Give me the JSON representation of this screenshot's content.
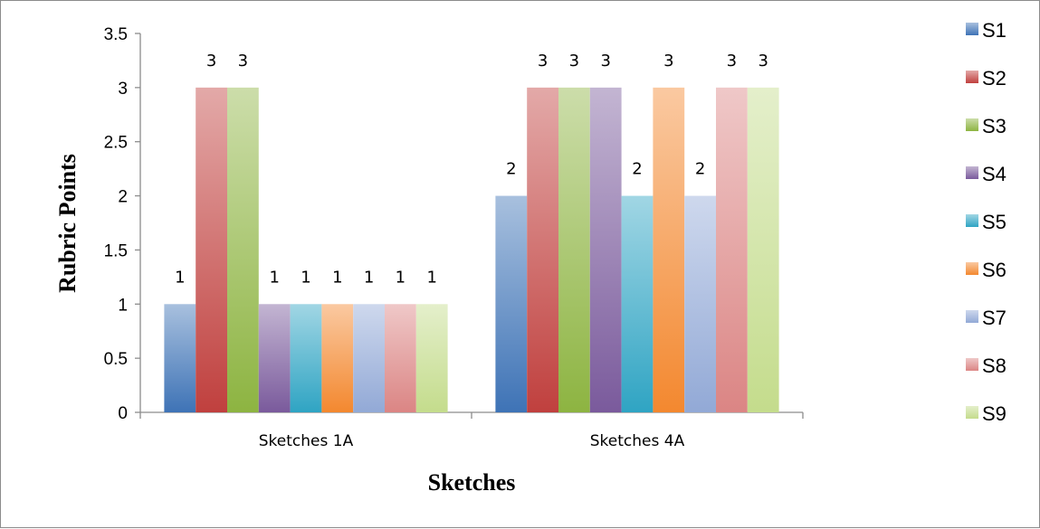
{
  "chart_data": {
    "type": "bar",
    "categories": [
      "Sketches 1A",
      "Sketches 4A"
    ],
    "series": [
      {
        "name": "S1",
        "values": [
          1,
          2
        ],
        "color": "#3e73b6"
      },
      {
        "name": "S2",
        "values": [
          3,
          3
        ],
        "color": "#c0403e"
      },
      {
        "name": "S3",
        "values": [
          3,
          3
        ],
        "color": "#8db441"
      },
      {
        "name": "S4",
        "values": [
          1,
          3
        ],
        "color": "#7a5a9c"
      },
      {
        "name": "S5",
        "values": [
          1,
          2
        ],
        "color": "#2fa4c3"
      },
      {
        "name": "S6",
        "values": [
          1,
          3
        ],
        "color": "#f3882f"
      },
      {
        "name": "S7",
        "values": [
          1,
          2
        ],
        "color": "#92a9d6"
      },
      {
        "name": "S8",
        "values": [
          1,
          3
        ],
        "color": "#db8584"
      },
      {
        "name": "S9",
        "values": [
          1,
          3
        ],
        "color": "#c4dc8c"
      }
    ],
    "xlabel": "Sketches",
    "ylabel": "Rubric Points",
    "ylim": [
      0,
      3.5
    ],
    "yticks": [
      "0",
      "0.5",
      "1",
      "1.5",
      "2",
      "2.5",
      "3",
      "3.5"
    ],
    "grid": false,
    "legend_position": "right",
    "data_labels": true
  }
}
